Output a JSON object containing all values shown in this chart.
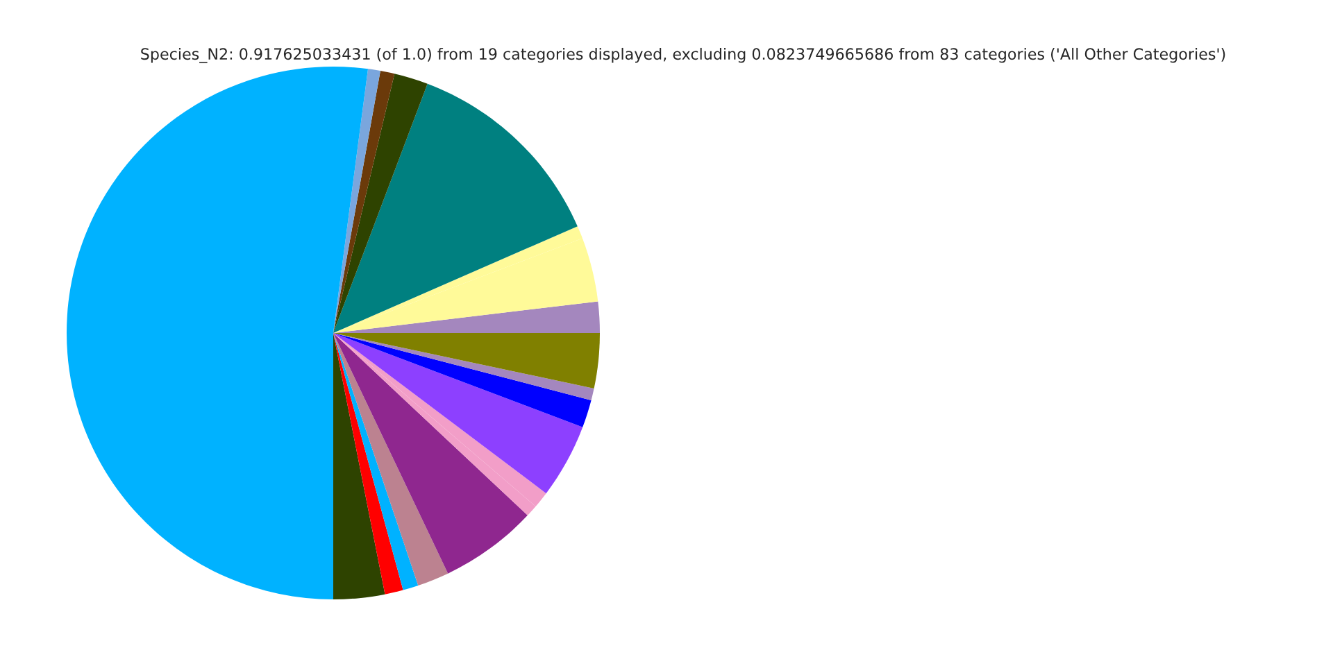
{
  "chart_data": {
    "type": "pie",
    "title": "Species_N2: 0.917625033431 (of 1.0) from 19 categories displayed, excluding 0.0823749665686 from 83 categories ('All Other Categories')",
    "categories": [
      null,
      null,
      null,
      null,
      null,
      null,
      null,
      null,
      null,
      null,
      null,
      null,
      null,
      null,
      null,
      null,
      null,
      null,
      null
    ],
    "values": [
      1.89,
      3.89,
      0.78,
      12.69,
      2.06,
      0.86,
      0.75,
      52.08,
      3.11,
      1.11,
      0.94,
      1.92,
      5.92,
      0.72,
      1.0,
      4.53,
      1.69,
      0.72,
      3.34
    ],
    "colors": [
      "#a487be",
      "#fffa99",
      "#fffa99",
      "#008080",
      "#2e4300",
      "#6b3a0a",
      "#7aa6dd",
      "#00b2ff",
      "#2e4300",
      "#ff0000",
      "#00b2ff",
      "#bc8290",
      "#8f278f",
      "#f29ec8",
      "#f29ec8",
      "#8d40ff",
      "#0000ff",
      "#a487be",
      "#808000"
    ],
    "legend": false
  }
}
